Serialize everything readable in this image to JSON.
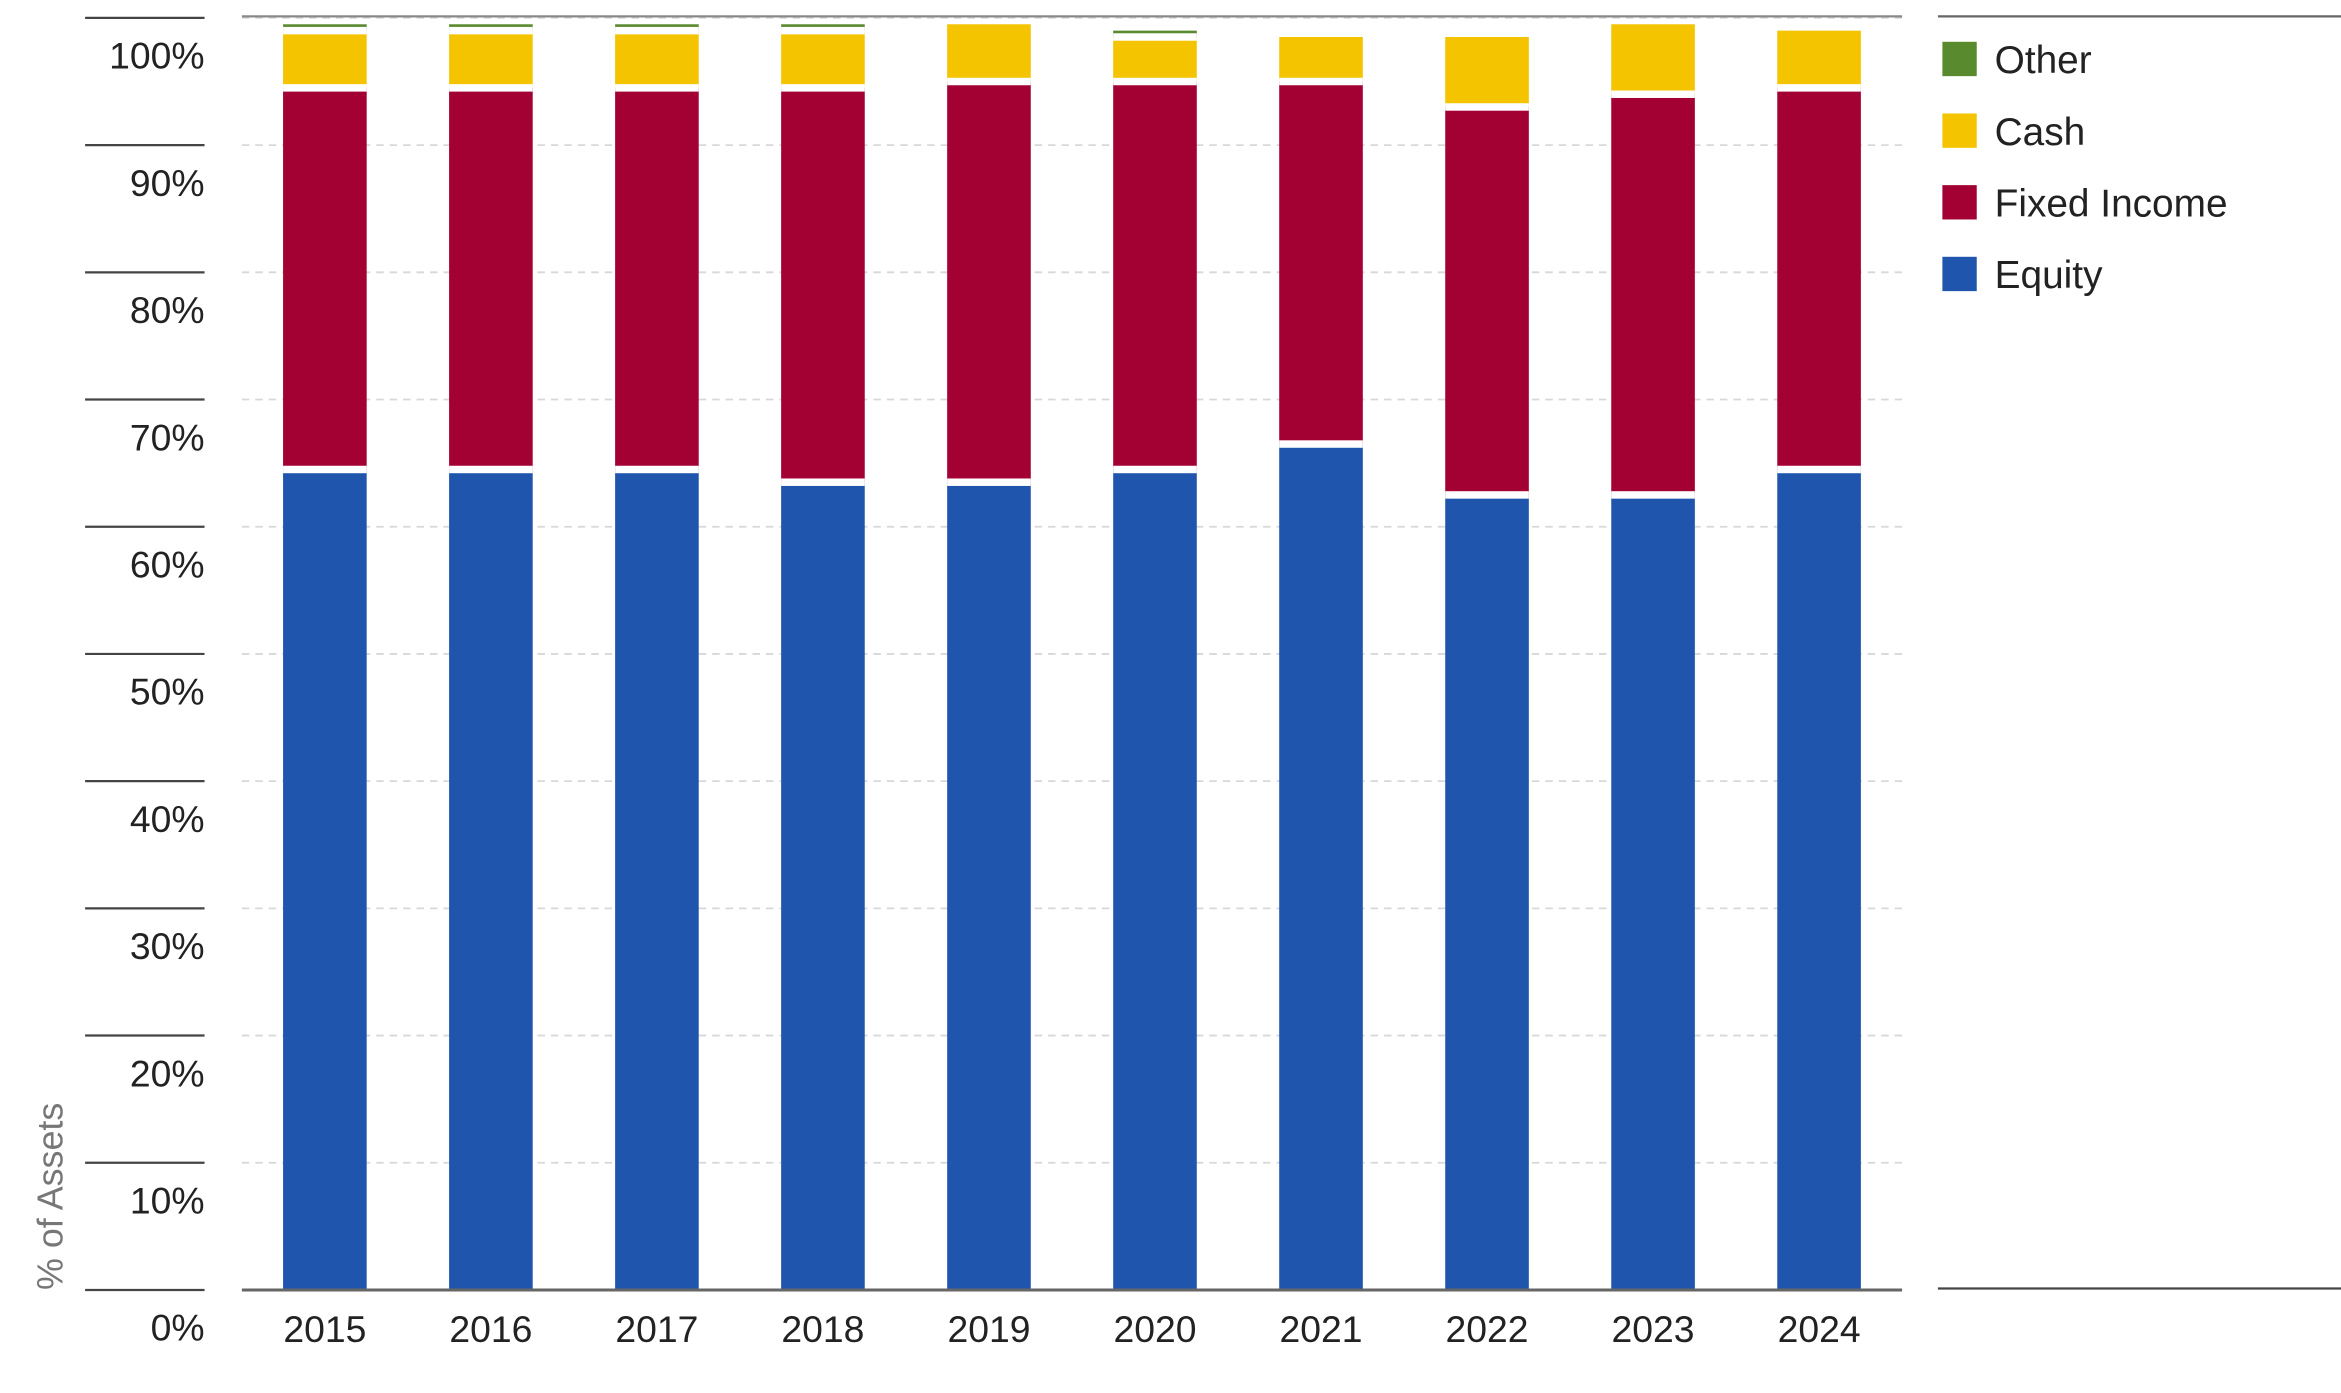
{
  "chart_data": {
    "type": "bar",
    "stacked": true,
    "title": "",
    "xlabel": "",
    "ylabel": "% of Assets",
    "ylim": [
      0,
      100
    ],
    "yticks": [
      "0%",
      "10%",
      "20%",
      "30%",
      "40%",
      "50%",
      "60%",
      "70%",
      "80%",
      "90%",
      "100%"
    ],
    "grid": true,
    "legend_position": "right",
    "categories": [
      "2015",
      "2016",
      "2017",
      "2018",
      "2019",
      "2020",
      "2021",
      "2022",
      "2023",
      "2024"
    ],
    "series": [
      {
        "name": "Equity",
        "color": "#1f55ad",
        "values": [
          64.5,
          64.5,
          64.5,
          63.5,
          63.5,
          64.5,
          66.5,
          62.5,
          62.5,
          64.5
        ]
      },
      {
        "name": "Fixed Income",
        "color": "#a30034",
        "values": [
          30,
          30,
          30,
          31,
          31.5,
          30.5,
          28.5,
          30.5,
          31.5,
          30
        ]
      },
      {
        "name": "Cash",
        "color": "#f5c400",
        "values": [
          4.5,
          4.5,
          4.5,
          4.5,
          4.5,
          3.5,
          3.5,
          5.5,
          5.5,
          4.5
        ]
      },
      {
        "name": "Other",
        "color": "#5a8a2e",
        "values": [
          0.5,
          0.5,
          0.5,
          0.5,
          0,
          0.5,
          0,
          0,
          0,
          0
        ]
      }
    ],
    "legend_order": [
      "Other",
      "Cash",
      "Fixed Income",
      "Equity"
    ]
  }
}
